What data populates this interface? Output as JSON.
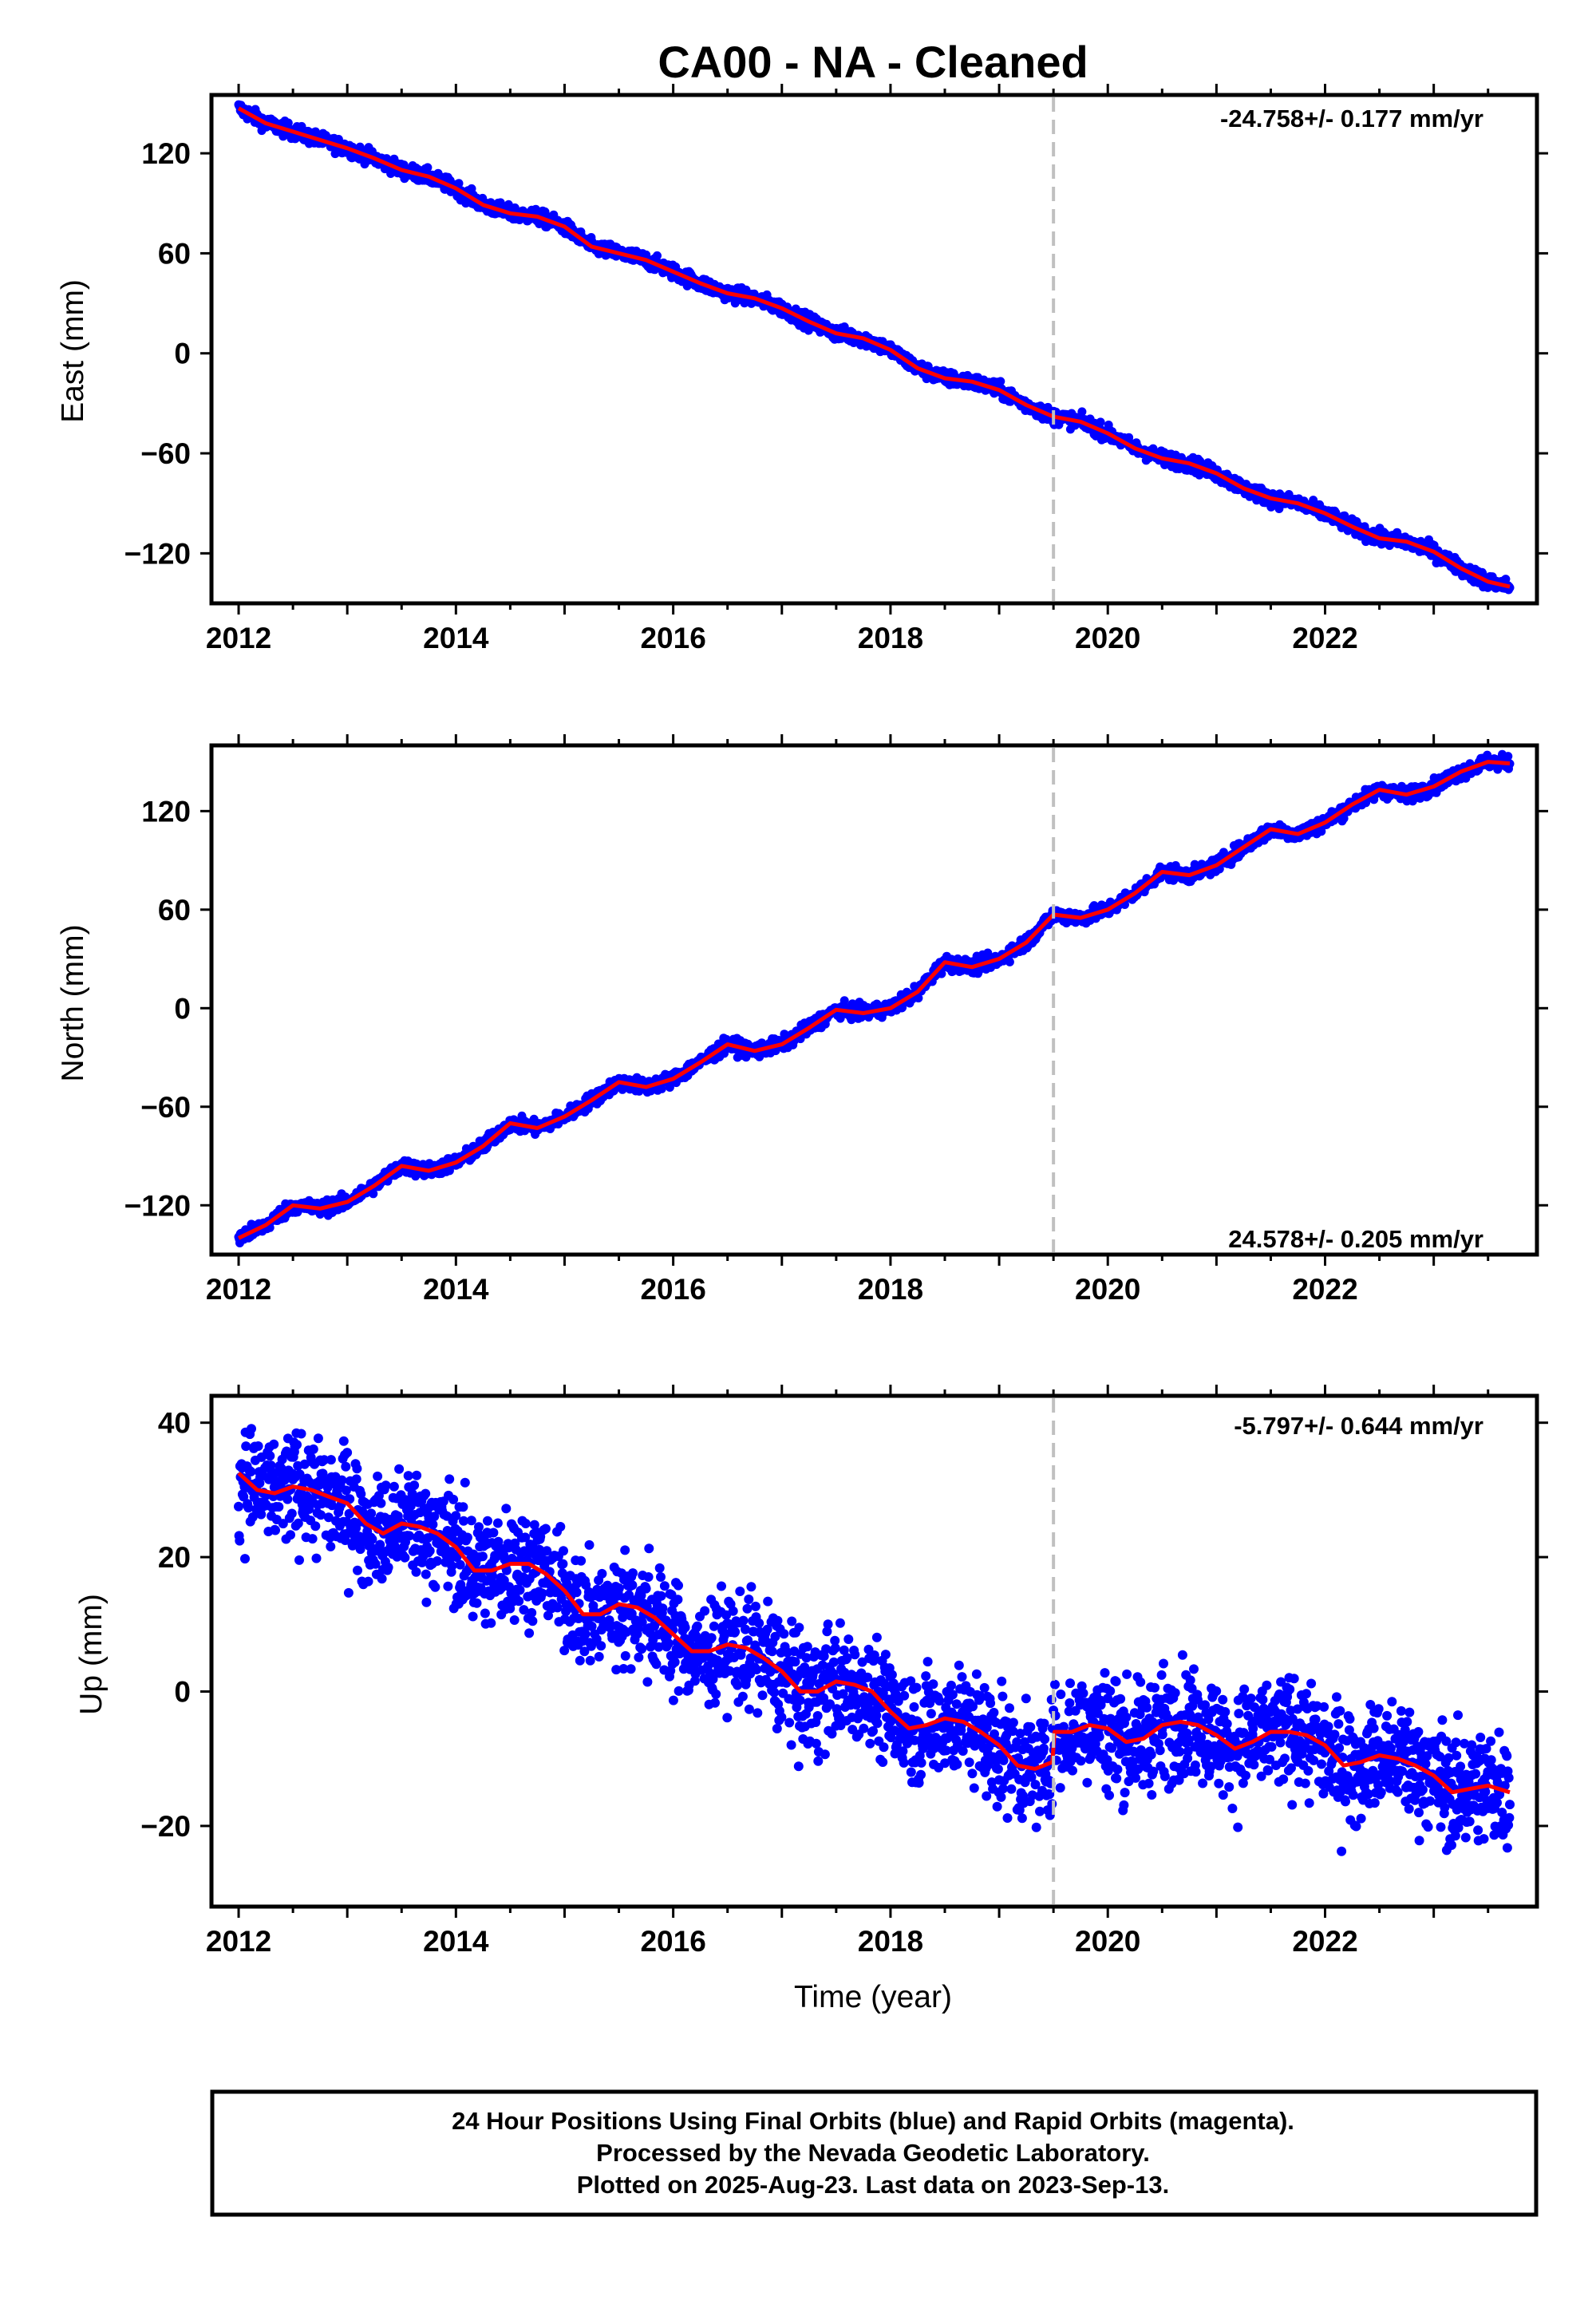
{
  "title": "CA00  - NA - Cleaned",
  "footer": {
    "line1": "24 Hour Positions Using Final Orbits (blue) and Rapid Orbits (magenta).",
    "line2": "Processed by the Nevada Geodetic Laboratory.",
    "line3": "Plotted on 2025-Aug-23. Last data on 2023-Sep-13."
  },
  "colors": {
    "data": "#0000ff",
    "fit": "#ff0000",
    "event_line": "#c0c0c0",
    "frame": "#000000"
  },
  "chart_data": [
    {
      "type": "scatter",
      "ylabel": "East (mm)",
      "rate_label": "-24.758+/- 0.177 mm/yr",
      "xlim": [
        2011.75,
        2023.95
      ],
      "ylim": [
        -150,
        155
      ],
      "x_ticks": [
        2012,
        2014,
        2016,
        2018,
        2020,
        2022
      ],
      "x_tick_labels": [
        "2012",
        "2014",
        "2016",
        "2018",
        "2020",
        "2022"
      ],
      "y_ticks": [
        -120,
        -60,
        0,
        60,
        120
      ],
      "y_tick_labels": [
        "−120",
        "−60",
        "0",
        "60",
        "120"
      ],
      "event_line_x": 2019.5,
      "series": [
        {
          "style": "points",
          "x": [
            2012.0,
            2012.25,
            2012.5,
            2012.75,
            2013.0,
            2013.25,
            2013.5,
            2013.75,
            2014.0,
            2014.25,
            2014.5,
            2014.75,
            2015.0,
            2015.25,
            2015.5,
            2015.75,
            2016.0,
            2016.25,
            2016.5,
            2016.75,
            2017.0,
            2017.25,
            2017.5,
            2017.75,
            2018.0,
            2018.25,
            2018.5,
            2018.75,
            2019.0,
            2019.25,
            2019.5,
            2019.75,
            2020.0,
            2020.25,
            2020.5,
            2020.75,
            2021.0,
            2021.25,
            2021.5,
            2021.75,
            2022.0,
            2022.25,
            2022.5,
            2022.75,
            2023.0,
            2023.25,
            2023.5,
            2023.7
          ],
          "y": [
            147,
            138,
            133,
            128,
            123,
            117,
            110,
            106,
            99,
            89,
            84,
            82,
            76,
            64,
            60,
            56,
            49,
            42,
            36,
            33,
            27,
            19,
            12,
            9,
            2,
            -9,
            -15,
            -17,
            -22,
            -31,
            -38,
            -41,
            -48,
            -57,
            -63,
            -66,
            -72,
            -81,
            -87,
            -90,
            -96,
            -104,
            -111,
            -113,
            -119,
            -129,
            -137,
            -140
          ]
        },
        {
          "style": "line",
          "x": [
            2012.0,
            2012.25,
            2012.5,
            2012.75,
            2013.0,
            2013.25,
            2013.5,
            2013.75,
            2014.0,
            2014.25,
            2014.5,
            2014.75,
            2015.0,
            2015.25,
            2015.5,
            2015.75,
            2016.0,
            2016.25,
            2016.5,
            2016.75,
            2017.0,
            2017.25,
            2017.5,
            2017.75,
            2018.0,
            2018.25,
            2018.5,
            2018.75,
            2019.0,
            2019.25,
            2019.5,
            2019.75,
            2020.0,
            2020.25,
            2020.5,
            2020.75,
            2021.0,
            2021.25,
            2021.5,
            2021.75,
            2022.0,
            2022.25,
            2022.5,
            2022.75,
            2023.0,
            2023.25,
            2023.5,
            2023.7
          ],
          "y": [
            147,
            138,
            133,
            128,
            123,
            117,
            110,
            106,
            99,
            89,
            84,
            82,
            76,
            64,
            60,
            56,
            49,
            42,
            36,
            33,
            27,
            19,
            12,
            9,
            2,
            -9,
            -15,
            -17,
            -22,
            -31,
            -38,
            -41,
            -48,
            -57,
            -63,
            -66,
            -72,
            -81,
            -87,
            -90,
            -96,
            -104,
            -111,
            -113,
            -119,
            -129,
            -137,
            -140
          ]
        }
      ]
    },
    {
      "type": "scatter",
      "ylabel": "North (mm)",
      "rate_label": "24.578+/- 0.205 mm/yr",
      "xlim": [
        2011.75,
        2023.95
      ],
      "ylim": [
        -150,
        160
      ],
      "x_ticks": [
        2012,
        2014,
        2016,
        2018,
        2020,
        2022
      ],
      "x_tick_labels": [
        "2012",
        "2014",
        "2016",
        "2018",
        "2020",
        "2022"
      ],
      "y_ticks": [
        -120,
        -60,
        0,
        60,
        120
      ],
      "y_tick_labels": [
        "−120",
        "−60",
        "0",
        "60",
        "120"
      ],
      "event_line_x": 2019.5,
      "series": [
        {
          "style": "points",
          "x": [
            2012.0,
            2012.25,
            2012.5,
            2012.75,
            2013.0,
            2013.25,
            2013.5,
            2013.75,
            2014.0,
            2014.25,
            2014.5,
            2014.75,
            2015.0,
            2015.25,
            2015.5,
            2015.75,
            2016.0,
            2016.25,
            2016.5,
            2016.75,
            2017.0,
            2017.25,
            2017.5,
            2017.75,
            2018.0,
            2018.25,
            2018.5,
            2018.75,
            2019.0,
            2019.25,
            2019.5,
            2019.75,
            2020.0,
            2020.25,
            2020.5,
            2020.75,
            2021.0,
            2021.25,
            2021.5,
            2021.75,
            2022.0,
            2022.25,
            2022.5,
            2022.75,
            2023.0,
            2023.25,
            2023.5,
            2023.7
          ],
          "y": [
            -140,
            -132,
            -120,
            -122,
            -118,
            -108,
            -96,
            -99,
            -94,
            -84,
            -70,
            -73,
            -66,
            -56,
            -45,
            -48,
            -43,
            -33,
            -22,
            -26,
            -22,
            -12,
            -1,
            -3,
            0,
            10,
            28,
            25,
            30,
            40,
            57,
            55,
            60,
            70,
            83,
            81,
            87,
            98,
            109,
            106,
            113,
            124,
            133,
            130,
            135,
            144,
            150,
            149
          ]
        },
        {
          "style": "line",
          "x": [
            2012.0,
            2012.25,
            2012.5,
            2012.75,
            2013.0,
            2013.25,
            2013.5,
            2013.75,
            2014.0,
            2014.25,
            2014.5,
            2014.75,
            2015.0,
            2015.25,
            2015.5,
            2015.75,
            2016.0,
            2016.25,
            2016.5,
            2016.75,
            2017.0,
            2017.25,
            2017.5,
            2017.75,
            2018.0,
            2018.25,
            2018.5,
            2018.75,
            2019.0,
            2019.25,
            2019.5,
            2019.75,
            2020.0,
            2020.25,
            2020.5,
            2020.75,
            2021.0,
            2021.25,
            2021.5,
            2021.75,
            2022.0,
            2022.25,
            2022.5,
            2022.75,
            2023.0,
            2023.25,
            2023.5,
            2023.7
          ],
          "y": [
            -140,
            -132,
            -120,
            -122,
            -118,
            -108,
            -96,
            -99,
            -94,
            -84,
            -70,
            -73,
            -66,
            -56,
            -45,
            -48,
            -43,
            -33,
            -22,
            -26,
            -22,
            -12,
            -1,
            -3,
            0,
            10,
            28,
            25,
            30,
            40,
            57,
            55,
            60,
            70,
            83,
            81,
            87,
            98,
            109,
            106,
            113,
            124,
            133,
            130,
            135,
            144,
            150,
            149
          ]
        }
      ]
    },
    {
      "type": "scatter",
      "ylabel": "Up (mm)",
      "xlabel": "Time (year)",
      "rate_label": "-5.797+/- 0.644 mm/yr",
      "xlim": [
        2011.75,
        2023.95
      ],
      "ylim": [
        -32,
        44
      ],
      "x_ticks": [
        2012,
        2014,
        2016,
        2018,
        2020,
        2022
      ],
      "x_tick_labels": [
        "2012",
        "2014",
        "2016",
        "2018",
        "2020",
        "2022"
      ],
      "y_ticks": [
        -20,
        0,
        20,
        40
      ],
      "y_tick_labels": [
        "−20",
        "0",
        "20",
        "40"
      ],
      "event_line_x": 2019.5,
      "series": [
        {
          "style": "points",
          "x": [
            2012.0,
            2012.17,
            2012.33,
            2012.5,
            2012.67,
            2012.83,
            2013.0,
            2013.17,
            2013.33,
            2013.5,
            2013.67,
            2013.83,
            2014.0,
            2014.17,
            2014.33,
            2014.5,
            2014.67,
            2014.83,
            2015.0,
            2015.17,
            2015.33,
            2015.5,
            2015.67,
            2015.83,
            2016.0,
            2016.17,
            2016.33,
            2016.5,
            2016.67,
            2016.83,
            2017.0,
            2017.17,
            2017.33,
            2017.5,
            2017.67,
            2017.83,
            2018.0,
            2018.17,
            2018.33,
            2018.5,
            2018.67,
            2018.83,
            2019.0,
            2019.17,
            2019.33,
            2019.49,
            2019.51,
            2019.67,
            2019.83,
            2020.0,
            2020.17,
            2020.33,
            2020.5,
            2020.67,
            2020.83,
            2021.0,
            2021.17,
            2021.33,
            2021.5,
            2021.67,
            2021.83,
            2022.0,
            2022.17,
            2022.33,
            2022.5,
            2022.67,
            2022.83,
            2023.0,
            2023.17,
            2023.33,
            2023.5,
            2023.7
          ],
          "y": [
            32.5,
            30,
            29.5,
            30.5,
            30,
            29,
            28,
            25,
            23.5,
            25,
            24.5,
            23.5,
            21.5,
            18,
            18,
            19,
            19,
            17.5,
            15,
            11.5,
            11.5,
            13,
            12.5,
            11,
            8.5,
            6,
            6,
            7,
            6.5,
            5,
            3,
            0,
            0,
            1.5,
            1,
            0,
            -3,
            -5.5,
            -5,
            -4,
            -4.5,
            -6,
            -8,
            -11,
            -11.5,
            -10.5,
            -6,
            -6,
            -5,
            -5.5,
            -7.5,
            -7,
            -5,
            -4.5,
            -5,
            -6.5,
            -8.5,
            -7.5,
            -6,
            -6,
            -6.5,
            -8,
            -11,
            -10.5,
            -9.5,
            -10,
            -11,
            -12.5,
            -15,
            -14.5,
            -14,
            -15
          ]
        },
        {
          "style": "line",
          "x": [
            2012.0,
            2012.17,
            2012.33,
            2012.5,
            2012.67,
            2012.83,
            2013.0,
            2013.17,
            2013.33,
            2013.5,
            2013.67,
            2013.83,
            2014.0,
            2014.17,
            2014.33,
            2014.5,
            2014.67,
            2014.83,
            2015.0,
            2015.17,
            2015.33,
            2015.5,
            2015.67,
            2015.83,
            2016.0,
            2016.17,
            2016.33,
            2016.5,
            2016.67,
            2016.83,
            2017.0,
            2017.17,
            2017.33,
            2017.5,
            2017.67,
            2017.83,
            2018.0,
            2018.17,
            2018.33,
            2018.5,
            2018.67,
            2018.83,
            2019.0,
            2019.17,
            2019.33,
            2019.49,
            2019.51,
            2019.67,
            2019.83,
            2020.0,
            2020.17,
            2020.33,
            2020.5,
            2020.67,
            2020.83,
            2021.0,
            2021.17,
            2021.33,
            2021.5,
            2021.67,
            2021.83,
            2022.0,
            2022.17,
            2022.33,
            2022.5,
            2022.67,
            2022.83,
            2023.0,
            2023.17,
            2023.33,
            2023.5,
            2023.7
          ],
          "y": [
            32.5,
            30,
            29.5,
            30.5,
            30,
            29,
            28,
            25,
            23.5,
            25,
            24.5,
            23.5,
            21.5,
            18,
            18,
            19,
            19,
            17.5,
            15,
            11.5,
            11.5,
            13,
            12.5,
            11,
            8.5,
            6,
            6,
            7,
            6.5,
            5,
            3,
            0,
            0,
            1.5,
            1,
            0,
            -3,
            -5.5,
            -5,
            -4,
            -4.5,
            -6,
            -8,
            -11,
            -11.5,
            -10.5,
            -6,
            -6,
            -5,
            -5.5,
            -7.5,
            -7,
            -5,
            -4.5,
            -5,
            -6.5,
            -8.5,
            -7.5,
            -6,
            -6,
            -6.5,
            -8,
            -11,
            -10.5,
            -9.5,
            -10,
            -11,
            -12.5,
            -15,
            -14.5,
            -14,
            -15
          ]
        }
      ]
    }
  ]
}
